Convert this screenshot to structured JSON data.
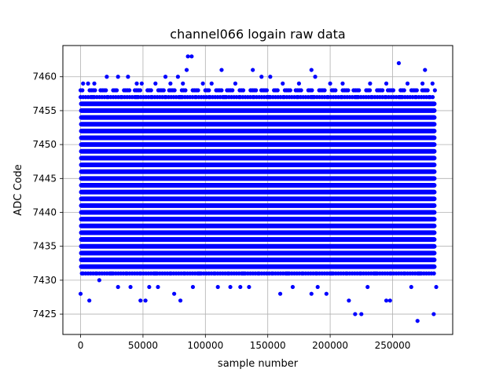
{
  "chart_data": {
    "type": "scatter",
    "title": "channel066 logain raw data",
    "xlabel": "sample number",
    "ylabel": "ADC Code",
    "xlim": [
      -14200,
      298200
    ],
    "ylim": [
      7422.0,
      7464.6
    ],
    "xticks": [
      0,
      50000,
      100000,
      150000,
      200000,
      250000
    ],
    "xtick_labels": [
      "0",
      "50000",
      "100000",
      "150000",
      "200000",
      "250000"
    ],
    "yticks": [
      7425,
      7430,
      7435,
      7440,
      7445,
      7450,
      7455,
      7460
    ],
    "ytick_labels": [
      "7425",
      "7430",
      "7435",
      "7440",
      "7445",
      "7450",
      "7455",
      "7460"
    ],
    "grid": true,
    "marker": "dot",
    "color": "#0000ff",
    "x_range": [
      0,
      284000
    ],
    "dense_band": [
      7432,
      7456
    ],
    "series": [
      {
        "values": [
          [
            0,
            7428
          ],
          [
            7000,
            7427
          ],
          [
            15000,
            7430
          ],
          [
            30000,
            7429
          ],
          [
            40000,
            7429
          ],
          [
            48000,
            7427
          ],
          [
            52000,
            7427
          ],
          [
            55000,
            7429
          ],
          [
            62000,
            7429
          ],
          [
            75000,
            7428
          ],
          [
            80000,
            7427
          ],
          [
            90000,
            7429
          ],
          [
            110000,
            7429
          ],
          [
            120000,
            7429
          ],
          [
            128000,
            7429
          ],
          [
            135000,
            7429
          ],
          [
            160000,
            7428
          ],
          [
            170000,
            7429
          ],
          [
            185000,
            7428
          ],
          [
            190000,
            7429
          ],
          [
            197000,
            7428
          ],
          [
            215000,
            7427
          ],
          [
            220000,
            7425
          ],
          [
            225000,
            7425
          ],
          [
            230000,
            7429
          ],
          [
            245000,
            7427
          ],
          [
            248000,
            7427
          ],
          [
            265000,
            7429
          ],
          [
            270000,
            7424
          ],
          [
            283000,
            7425
          ],
          [
            285000,
            7429
          ],
          [
            86000,
            7463
          ],
          [
            89000,
            7463
          ],
          [
            85000,
            7461
          ],
          [
            113000,
            7461
          ],
          [
            138000,
            7461
          ],
          [
            185000,
            7461
          ],
          [
            255000,
            7462
          ],
          [
            276000,
            7461
          ],
          [
            2000,
            7459
          ],
          [
            6000,
            7459
          ],
          [
            11000,
            7459
          ],
          [
            21000,
            7460
          ],
          [
            30000,
            7460
          ],
          [
            38000,
            7460
          ],
          [
            45000,
            7459
          ],
          [
            49000,
            7459
          ],
          [
            60000,
            7459
          ],
          [
            68000,
            7460
          ],
          [
            72000,
            7459
          ],
          [
            78000,
            7460
          ],
          [
            82000,
            7459
          ],
          [
            98000,
            7459
          ],
          [
            105000,
            7459
          ],
          [
            124000,
            7459
          ],
          [
            145000,
            7460
          ],
          [
            152000,
            7460
          ],
          [
            162000,
            7459
          ],
          [
            175000,
            7459
          ],
          [
            188000,
            7460
          ],
          [
            200000,
            7459
          ],
          [
            210000,
            7459
          ],
          [
            232000,
            7459
          ],
          [
            245000,
            7459
          ],
          [
            262000,
            7459
          ],
          [
            274000,
            7459
          ],
          [
            282000,
            7459
          ]
        ]
      }
    ]
  }
}
